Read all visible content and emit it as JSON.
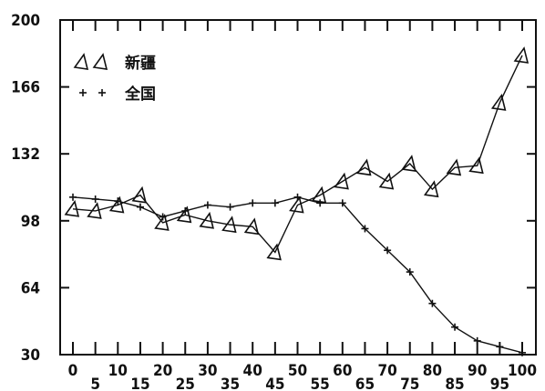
{
  "chart_data": {
    "type": "line",
    "title": "",
    "xlabel": "",
    "ylabel": "",
    "xlim": [
      0,
      100
    ],
    "ylim": [
      30,
      200
    ],
    "x_ticks": [
      0,
      5,
      10,
      15,
      20,
      25,
      30,
      35,
      40,
      45,
      50,
      55,
      60,
      65,
      70,
      75,
      80,
      85,
      90,
      95,
      100
    ],
    "y_ticks": [
      30,
      64,
      98,
      132,
      166,
      200
    ],
    "grid": false,
    "legend_position": "top-left",
    "series": [
      {
        "name": "新疆",
        "marker": "triangle",
        "x": [
          0,
          5,
          10,
          15,
          20,
          25,
          30,
          35,
          40,
          45,
          50,
          55,
          60,
          65,
          70,
          75,
          80,
          85,
          90,
          95,
          100
        ],
        "y": [
          104,
          103,
          106,
          111,
          97,
          101,
          98,
          96,
          95,
          82,
          106,
          111,
          118,
          125,
          118,
          127,
          114,
          125,
          126,
          158,
          182
        ]
      },
      {
        "name": "全国",
        "marker": "plus",
        "x": [
          0,
          5,
          10,
          15,
          20,
          25,
          30,
          35,
          40,
          45,
          50,
          55,
          60,
          65,
          70,
          75,
          80,
          85,
          90,
          95,
          100
        ],
        "y": [
          110,
          109,
          108,
          105,
          100,
          103,
          106,
          105,
          107,
          107,
          110,
          107,
          107,
          94,
          83,
          72,
          56,
          44,
          37,
          34,
          31
        ]
      }
    ]
  }
}
